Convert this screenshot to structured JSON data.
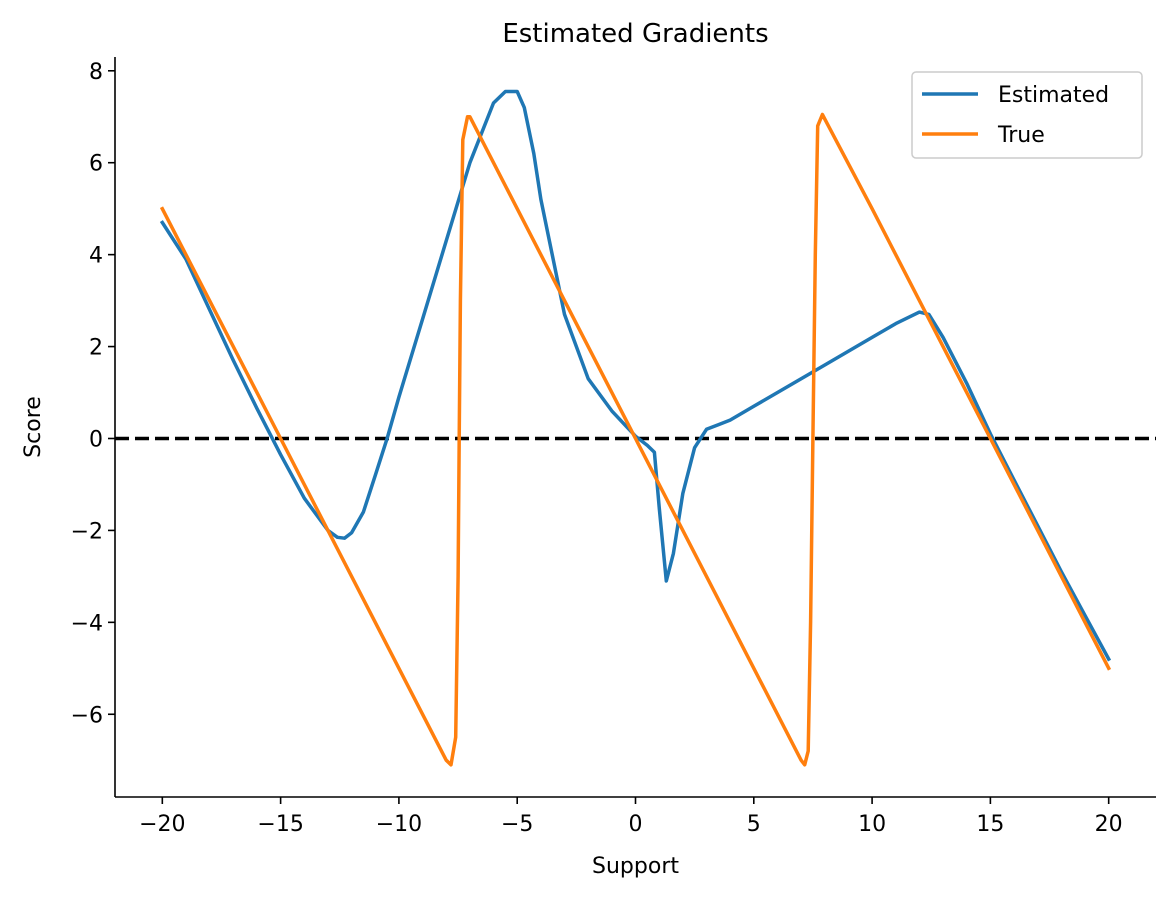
{
  "chart_data": {
    "type": "line",
    "title": "Estimated Gradients",
    "xlabel": "Support",
    "ylabel": "Score",
    "xlim": [
      -22,
      22
    ],
    "ylim": [
      -7.8,
      8.3
    ],
    "xticks": [
      -20,
      -15,
      -10,
      -5,
      0,
      5,
      10,
      15,
      20
    ],
    "xtick_labels": [
      "−20",
      "−15",
      "−10",
      "−5",
      "0",
      "5",
      "10",
      "15",
      "20"
    ],
    "yticks": [
      -6,
      -4,
      -2,
      0,
      2,
      4,
      6,
      8
    ],
    "ytick_labels": [
      "−6",
      "−4",
      "−2",
      "0",
      "2",
      "4",
      "6",
      "8"
    ],
    "grid": false,
    "legend_position": "top-right",
    "reference_line": {
      "y": 0,
      "style": "dashed",
      "color": "#000000"
    },
    "series": [
      {
        "name": "Estimated",
        "color": "#1f77b4",
        "x": [
          -20,
          -19,
          -18,
          -17,
          -16,
          -15,
          -14,
          -13,
          -12.6,
          -12.3,
          -12,
          -11.5,
          -11,
          -10.5,
          -10,
          -9,
          -8,
          -7,
          -6,
          -5.5,
          -5,
          -4.7,
          -4.3,
          -4,
          -3,
          -2,
          -1,
          0,
          0.5,
          0.8,
          1,
          1.3,
          1.6,
          2,
          2.5,
          3,
          3.5,
          4,
          5,
          6,
          8,
          10,
          11,
          12,
          12.4,
          13,
          14,
          15,
          16,
          17,
          18,
          19,
          20
        ],
        "y": [
          4.7,
          3.9,
          2.8,
          1.7,
          0.65,
          -0.35,
          -1.3,
          -2.0,
          -2.15,
          -2.17,
          -2.05,
          -1.6,
          -0.8,
          0.0,
          0.9,
          2.6,
          4.3,
          6.0,
          7.3,
          7.55,
          7.55,
          7.2,
          6.2,
          5.2,
          2.7,
          1.3,
          0.6,
          0.05,
          -0.15,
          -0.3,
          -1.5,
          -3.1,
          -2.5,
          -1.2,
          -0.2,
          0.2,
          0.3,
          0.4,
          0.7,
          1.0,
          1.6,
          2.2,
          2.5,
          2.75,
          2.7,
          2.2,
          1.2,
          0.1,
          -0.9,
          -1.9,
          -2.9,
          -3.85,
          -4.8
        ]
      },
      {
        "name": "True",
        "color": "#ff7f0e",
        "x": [
          -20,
          -15,
          -10,
          -8,
          -7.8,
          -7.6,
          -7.5,
          -7.45,
          -7.4,
          -7.3,
          -7.1,
          -7,
          -5,
          0,
          5,
          7,
          7.15,
          7.3,
          7.4,
          7.5,
          7.6,
          7.7,
          7.9,
          10,
          15,
          20
        ],
        "y": [
          5.0,
          0.0,
          -5.0,
          -7.0,
          -7.1,
          -6.5,
          -3.0,
          0.0,
          3.0,
          6.5,
          7.0,
          7.0,
          5.0,
          0.0,
          -5.0,
          -7.0,
          -7.1,
          -6.8,
          -4.0,
          0.0,
          4.0,
          6.8,
          7.05,
          5.0,
          0.0,
          -5.0
        ]
      }
    ]
  }
}
